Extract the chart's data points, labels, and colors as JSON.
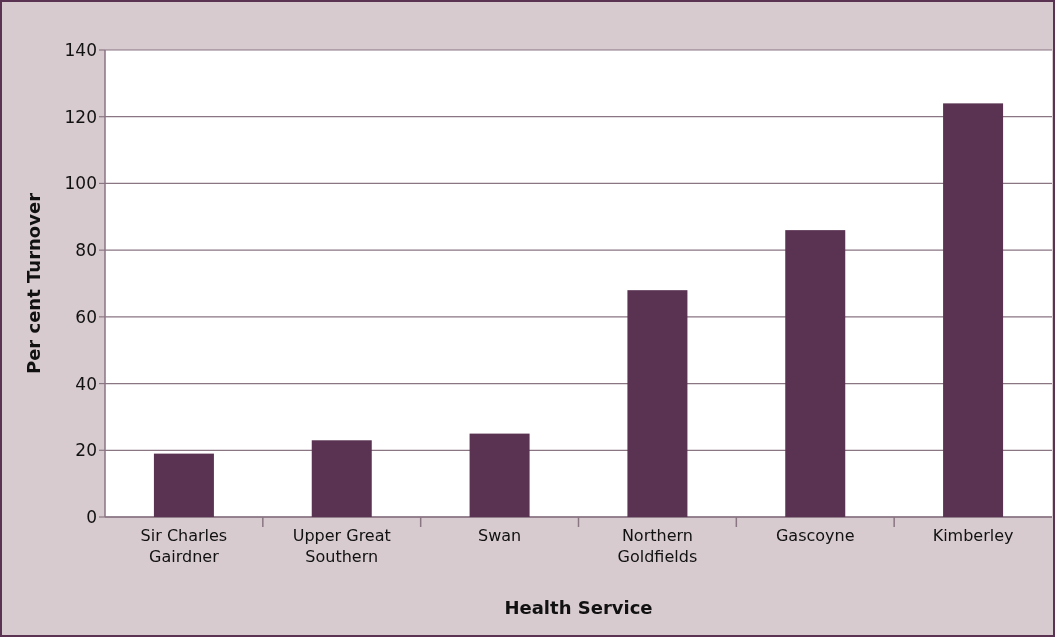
{
  "chart_data": {
    "type": "bar",
    "xlabel": "Health Service",
    "ylabel": "Per cent Turnover",
    "categories": [
      "Sir Charles Gairdner",
      "Upper Great Southern",
      "Swan",
      "Northern Goldfields",
      "Gascoyne",
      "Kimberley"
    ],
    "values": [
      19,
      23,
      25,
      68,
      86,
      124
    ],
    "color": "#5a3352",
    "ylim": [
      0,
      140
    ],
    "yticks": [
      0,
      20,
      40,
      60,
      80,
      100,
      120,
      140
    ],
    "grid": "y"
  }
}
